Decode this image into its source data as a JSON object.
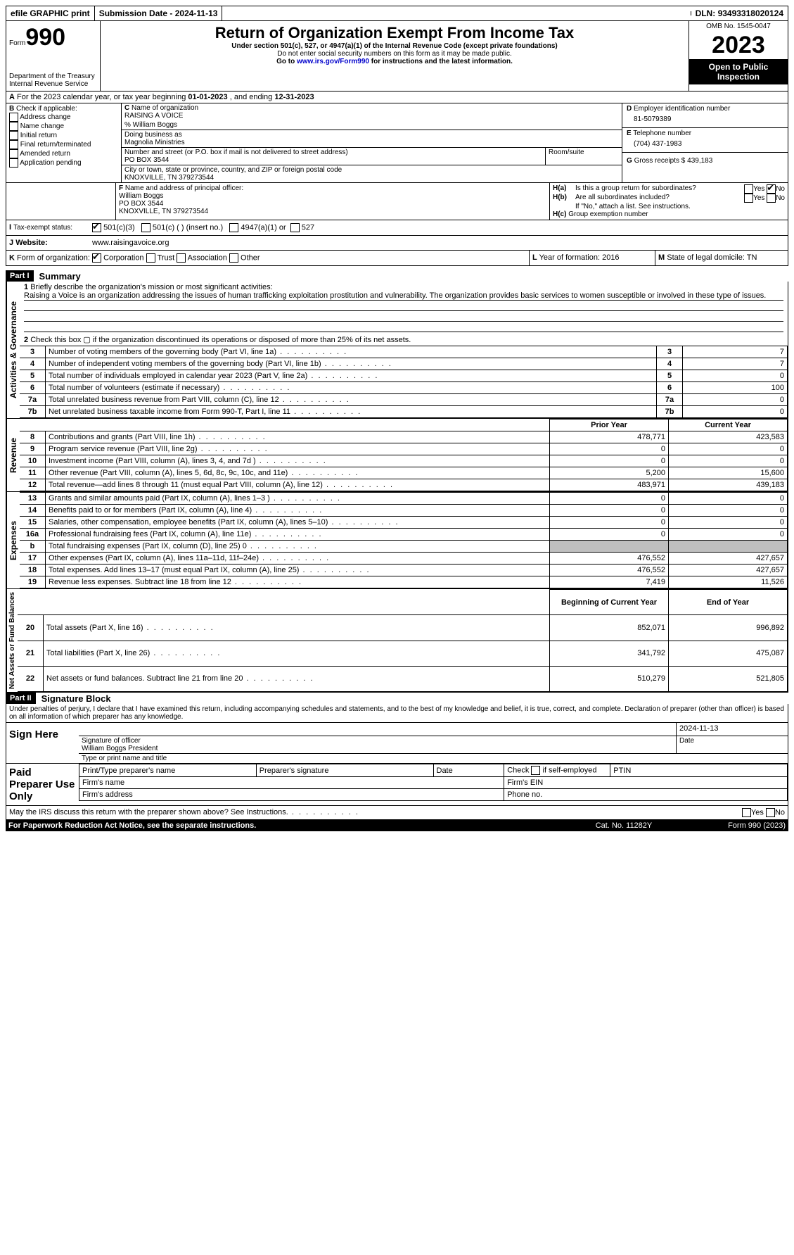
{
  "topbar": {
    "efile": "efile GRAPHIC print",
    "sub_lbl": "Submission Date - ",
    "sub_date": "2024-11-13",
    "dln_lbl": "DLN: ",
    "dln": "93493318020124"
  },
  "hdr": {
    "form_word": "Form",
    "form_no": "990",
    "dept": "Department of the Treasury\nInternal Revenue Service",
    "title": "Return of Organization Exempt From Income Tax",
    "sub1": "Under section 501(c), 527, or 4947(a)(1) of the Internal Revenue Code (except private foundations)",
    "sub2": "Do not enter social security numbers on this form as it may be made public.",
    "sub3_pre": "Go to ",
    "sub3_link": "www.irs.gov/Form990",
    "sub3_post": " for instructions and the latest information.",
    "omb_lbl": "OMB No. ",
    "omb": "1545-0047",
    "year": "2023",
    "inspect": "Open to Public Inspection"
  },
  "A": {
    "text": "For the 2023 calendar year, or tax year beginning ",
    "begin": "01-01-2023",
    "mid": " , and ending ",
    "end": "12-31-2023"
  },
  "B": {
    "lbl": "Check if applicable:",
    "opts": [
      "Address change",
      "Name change",
      "Initial return",
      "Final return/terminated",
      "Amended return",
      "Application pending"
    ]
  },
  "C": {
    "lbl": "Name of organization",
    "org": "RAISING A VOICE",
    "care": "% William Boggs",
    "dba_lbl": "Doing business as",
    "dba": "Magnolia Ministries",
    "addr_lbl": "Number and street (or P.O. box if mail is not delivered to street address)",
    "addr": "PO BOX 3544",
    "room_lbl": "Room/suite",
    "city_lbl": "City or town, state or province, country, and ZIP or foreign postal code",
    "city": "KNOXVILLE, TN  379273544"
  },
  "D": {
    "lbl": "Employer identification number",
    "val": "81-5079389"
  },
  "E": {
    "lbl": "Telephone number",
    "val": "(704) 437-1983"
  },
  "G": {
    "lbl": "Gross receipts $ ",
    "val": "439,183"
  },
  "F": {
    "lbl": "Name and address of principal officer:",
    "name": "William Boggs",
    "addr": "PO BOX 3544",
    "city": "KNOXVILLE, TN  379273544"
  },
  "H": {
    "a": "Is this a group return for subordinates?",
    "b": "Are all subordinates included?",
    "b2": "If \"No,\" attach a list. See instructions.",
    "c": "Group exemption number",
    "yes": "Yes",
    "no": "No"
  },
  "I": {
    "lbl": "Tax-exempt status:",
    "o1": "501(c)(3)",
    "o2": "501(c) (  ) (insert no.)",
    "o3": "4947(a)(1) or",
    "o4": "527"
  },
  "J": {
    "lbl": "Website:",
    "val": "www.raisingavoice.org"
  },
  "K": {
    "lbl": "Form of organization:",
    "o1": "Corporation",
    "o2": "Trust",
    "o3": "Association",
    "o4": "Other"
  },
  "L": {
    "lbl": "Year of formation: ",
    "val": "2016"
  },
  "M": {
    "lbl": "State of legal domicile: ",
    "val": "TN"
  },
  "part1": {
    "hdr": "Part I",
    "title": "Summary"
  },
  "gov": {
    "side": "Activities & Governance",
    "l1": "Briefly describe the organization's mission or most significant activities:",
    "l1v": "Raising a Voice is an organization addressing the issues of human trafficking exploitation prostitution and vulnerability. The organization provides basic services to women susceptible or involved in these type of issues.",
    "l2": "Check this box ▢ if the organization discontinued its operations or disposed of more than 25% of its net assets.",
    "rows": [
      {
        "n": "3",
        "d": "Number of voting members of the governing body (Part VI, line 1a)",
        "v": "7"
      },
      {
        "n": "4",
        "d": "Number of independent voting members of the governing body (Part VI, line 1b)",
        "v": "7"
      },
      {
        "n": "5",
        "d": "Total number of individuals employed in calendar year 2023 (Part V, line 2a)",
        "v": "0"
      },
      {
        "n": "6",
        "d": "Total number of volunteers (estimate if necessary)",
        "v": "100"
      },
      {
        "n": "7a",
        "d": "Total unrelated business revenue from Part VIII, column (C), line 12",
        "v": "0"
      },
      {
        "n": "7b",
        "d": "Net unrelated business taxable income from Form 990-T, Part I, line 11",
        "v": "0"
      }
    ]
  },
  "rev": {
    "side": "Revenue",
    "h1": "Prior Year",
    "h2": "Current Year",
    "rows": [
      {
        "n": "8",
        "d": "Contributions and grants (Part VIII, line 1h)",
        "p": "478,771",
        "c": "423,583"
      },
      {
        "n": "9",
        "d": "Program service revenue (Part VIII, line 2g)",
        "p": "0",
        "c": "0"
      },
      {
        "n": "10",
        "d": "Investment income (Part VIII, column (A), lines 3, 4, and 7d )",
        "p": "0",
        "c": "0"
      },
      {
        "n": "11",
        "d": "Other revenue (Part VIII, column (A), lines 5, 6d, 8c, 9c, 10c, and 11e)",
        "p": "5,200",
        "c": "15,600"
      },
      {
        "n": "12",
        "d": "Total revenue—add lines 8 through 11 (must equal Part VIII, column (A), line 12)",
        "p": "483,971",
        "c": "439,183"
      }
    ]
  },
  "exp": {
    "side": "Expenses",
    "rows": [
      {
        "n": "13",
        "d": "Grants and similar amounts paid (Part IX, column (A), lines 1–3 )",
        "p": "0",
        "c": "0"
      },
      {
        "n": "14",
        "d": "Benefits paid to or for members (Part IX, column (A), line 4)",
        "p": "0",
        "c": "0"
      },
      {
        "n": "15",
        "d": "Salaries, other compensation, employee benefits (Part IX, column (A), lines 5–10)",
        "p": "0",
        "c": "0"
      },
      {
        "n": "16a",
        "d": "Professional fundraising fees (Part IX, column (A), line 11e)",
        "p": "0",
        "c": "0"
      },
      {
        "n": "b",
        "d": "Total fundraising expenses (Part IX, column (D), line 25) 0",
        "p": "",
        "c": "",
        "grey": true
      },
      {
        "n": "17",
        "d": "Other expenses (Part IX, column (A), lines 11a–11d, 11f–24e)",
        "p": "476,552",
        "c": "427,657"
      },
      {
        "n": "18",
        "d": "Total expenses. Add lines 13–17 (must equal Part IX, column (A), line 25)",
        "p": "476,552",
        "c": "427,657"
      },
      {
        "n": "19",
        "d": "Revenue less expenses. Subtract line 18 from line 12",
        "p": "7,419",
        "c": "11,526"
      }
    ]
  },
  "net": {
    "side": "Net Assets or Fund Balances",
    "h1": "Beginning of Current Year",
    "h2": "End of Year",
    "rows": [
      {
        "n": "20",
        "d": "Total assets (Part X, line 16)",
        "p": "852,071",
        "c": "996,892"
      },
      {
        "n": "21",
        "d": "Total liabilities (Part X, line 26)",
        "p": "341,792",
        "c": "475,087"
      },
      {
        "n": "22",
        "d": "Net assets or fund balances. Subtract line 21 from line 20",
        "p": "510,279",
        "c": "521,805"
      }
    ]
  },
  "part2": {
    "hdr": "Part II",
    "title": "Signature Block",
    "perjury": "Under penalties of perjury, I declare that I have examined this return, including accompanying schedules and statements, and to the best of my knowledge and belief, it is true, correct, and complete. Declaration of preparer (other than officer) is based on all information of which preparer has any knowledge."
  },
  "sign": {
    "here": "Sign Here",
    "sig_lbl": "Signature of officer",
    "date_lbl": "Date",
    "date": "2024-11-13",
    "name": "William Boggs  President",
    "name_lbl": "Type or print name and title"
  },
  "prep": {
    "side": "Paid Preparer Use Only",
    "c1": "Print/Type preparer's name",
    "c2": "Preparer's signature",
    "c3": "Date",
    "c4_pre": "Check",
    "c4": "if self-employed",
    "c5": "PTIN",
    "fn": "Firm's name",
    "fe": "Firm's EIN",
    "fa": "Firm's address",
    "fp": "Phone no."
  },
  "foot": {
    "q": "May the IRS discuss this return with the preparer shown above? See Instructions.",
    "pra": "For Paperwork Reduction Act Notice, see the separate instructions.",
    "cat": "Cat. No. 11282Y",
    "form": "Form 990 (2023)",
    "yes": "Yes",
    "no": "No"
  }
}
